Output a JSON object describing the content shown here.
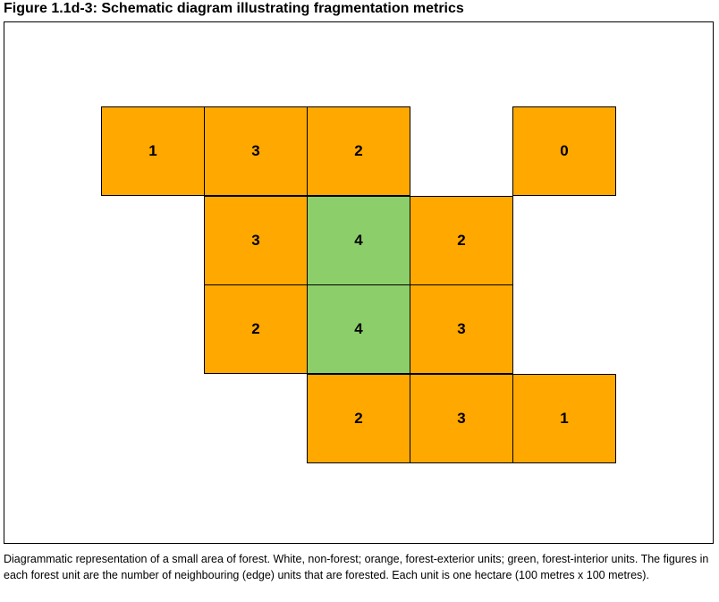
{
  "title": "Figure 1.1d-3: Schematic diagram illustrating fragmentation metrics",
  "colors": {
    "exterior": "#FFA800",
    "interior": "#8CCF6A"
  },
  "cells": [
    {
      "row": 0,
      "col": 0,
      "value": "1",
      "type": "exterior"
    },
    {
      "row": 0,
      "col": 1,
      "value": "3",
      "type": "exterior"
    },
    {
      "row": 0,
      "col": 2,
      "value": "2",
      "type": "exterior"
    },
    {
      "row": 0,
      "col": 4,
      "value": "0",
      "type": "exterior"
    },
    {
      "row": 1,
      "col": 1,
      "value": "3",
      "type": "exterior"
    },
    {
      "row": 1,
      "col": 2,
      "value": "4",
      "type": "interior"
    },
    {
      "row": 1,
      "col": 3,
      "value": "2",
      "type": "exterior"
    },
    {
      "row": 2,
      "col": 1,
      "value": "2",
      "type": "exterior"
    },
    {
      "row": 2,
      "col": 2,
      "value": "4",
      "type": "interior"
    },
    {
      "row": 2,
      "col": 3,
      "value": "3",
      "type": "exterior"
    },
    {
      "row": 3,
      "col": 2,
      "value": "2",
      "type": "exterior"
    },
    {
      "row": 3,
      "col": 3,
      "value": "3",
      "type": "exterior"
    },
    {
      "row": 3,
      "col": 4,
      "value": "1",
      "type": "exterior"
    }
  ],
  "caption": "Diagrammatic representation of a small area of forest. White, non-forest; orange, forest-exterior units; green, forest-interior units. The figures in each forest unit are the number of neighbouring (edge) units that are forested. Each unit is one hectare (100 metres x 100 metres)."
}
